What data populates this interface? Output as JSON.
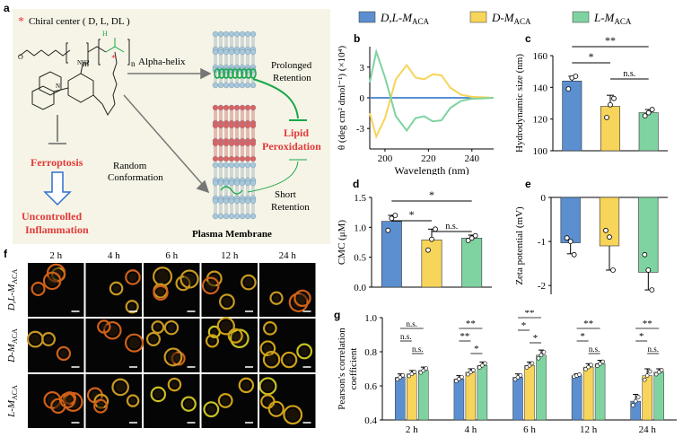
{
  "colors": {
    "dl": "#5b8fd0",
    "d": "#f7d45a",
    "l": "#7fd3a0",
    "red_label": "#e23a3a",
    "schematic_bg": "#f6f4e6"
  },
  "legend": [
    {
      "key": "dl",
      "label": "D,L-M",
      "sub": "ACA"
    },
    {
      "key": "d",
      "label": "D-M",
      "sub": "ACA"
    },
    {
      "key": "l",
      "label": "L-M",
      "sub": "ACA"
    }
  ],
  "panel_a": {
    "letter": "a",
    "chiral_star": "*",
    "chiral_label": "Chiral center ( D, L, DL )",
    "alpha_helix": "Alpha-helix",
    "random": "Random",
    "conformation": "Conformation",
    "prolonged": "Prolonged",
    "retention": "Retention",
    "short": "Short",
    "short_retention": "Retention",
    "lipid": "Lipid",
    "peroxidation": "Peroxidation",
    "ferroptosis": "Ferroptosis",
    "uncontrolled": "Uncontrolled",
    "inflammation": "Inflammation",
    "membrane": "Plasma Membrane",
    "formula_m": "m",
    "formula_n": "n",
    "formula_nh2": "NH2",
    "formula_h": "H",
    "formula_n_atom": "N",
    "formula_o": "O"
  },
  "panel_f": {
    "letter": "f",
    "times": [
      "2 h",
      "4 h",
      "6 h",
      "12 h",
      "24 h"
    ],
    "rows": [
      {
        "label": "D,L-M",
        "sub": "ACA"
      },
      {
        "label": "D-M",
        "sub": "ACA"
      },
      {
        "label": "L-M",
        "sub": "ACA"
      }
    ]
  },
  "chart_data": [
    {
      "panel": "b",
      "type": "line",
      "xlabel": "Wavelength (nm)",
      "ylabel": "θ (deg cm² dmol⁻¹) (×10⁴)",
      "xlim": [
        193,
        250
      ],
      "ylim": [
        -5,
        5
      ],
      "xticks": [
        200,
        220,
        240
      ],
      "yticks": [
        -3,
        0,
        3
      ],
      "series": [
        {
          "key": "dl",
          "x": [
            193,
            200,
            210,
            220,
            230,
            240,
            250
          ],
          "y": [
            0,
            0,
            0,
            0,
            0,
            0,
            0
          ]
        },
        {
          "key": "d",
          "x": [
            193,
            196,
            200,
            205,
            210,
            214,
            218,
            222,
            226,
            230,
            235,
            240,
            245,
            250
          ],
          "y": [
            -1.5,
            -3.8,
            -2.0,
            1.8,
            3.2,
            2.0,
            1.8,
            2.3,
            2.2,
            1.0,
            0.3,
            0.1,
            0.05,
            0
          ]
        },
        {
          "key": "l",
          "x": [
            193,
            196,
            200,
            205,
            210,
            214,
            218,
            222,
            226,
            230,
            235,
            240,
            245,
            250
          ],
          "y": [
            1.5,
            4.5,
            2.0,
            -1.8,
            -3.2,
            -2.0,
            -1.8,
            -2.3,
            -2.2,
            -1.0,
            -0.3,
            -0.1,
            -0.05,
            0
          ]
        }
      ]
    },
    {
      "panel": "c",
      "type": "bar",
      "ylabel": "Hydrodynamic size (nm)",
      "ylim": [
        100,
        160
      ],
      "yticks": [
        100,
        120,
        140,
        160
      ],
      "categories": [
        "dl",
        "d",
        "l"
      ],
      "values": [
        144,
        128,
        124
      ],
      "errors": [
        3,
        7,
        2
      ],
      "points": [
        [
          139,
          146,
          147
        ],
        [
          121,
          129,
          133
        ],
        [
          122,
          124,
          126
        ]
      ],
      "significance": [
        {
          "a": 0,
          "b": 2,
          "label": "**"
        },
        {
          "a": 0,
          "b": 1,
          "label": "*"
        },
        {
          "a": 1,
          "b": 2,
          "label": "n.s."
        }
      ]
    },
    {
      "panel": "d",
      "type": "bar",
      "ylabel": "CMC (μM)",
      "ylim": [
        0,
        1.5
      ],
      "yticks": [
        0.0,
        0.5,
        1.0,
        1.5
      ],
      "categories": [
        "dl",
        "d",
        "l"
      ],
      "values": [
        1.1,
        0.79,
        0.82
      ],
      "errors": [
        0.1,
        0.18,
        0.05
      ],
      "points": [
        [
          0.95,
          1.15,
          1.2
        ],
        [
          0.62,
          0.8,
          0.97
        ],
        [
          0.78,
          0.82,
          0.86
        ]
      ],
      "significance": [
        {
          "a": 0,
          "b": 2,
          "label": "*"
        },
        {
          "a": 0,
          "b": 1,
          "label": "*"
        },
        {
          "a": 1,
          "b": 2,
          "label": "n.s."
        }
      ]
    },
    {
      "panel": "e",
      "type": "bar",
      "ylabel": "Zeta potential (mV)",
      "ylim": [
        -2.2,
        0
      ],
      "yticks": [
        0,
        -1,
        -2
      ],
      "categories": [
        "dl",
        "d",
        "l"
      ],
      "values": [
        -1.03,
        -1.1,
        -1.7
      ],
      "errors": [
        0.25,
        0.55,
        0.4
      ],
      "points": [
        [
          -0.92,
          -1.0,
          -1.3
        ],
        [
          -0.75,
          -0.9,
          -1.65
        ],
        [
          -1.3,
          -1.65,
          -2.1
        ]
      ]
    },
    {
      "panel": "g",
      "type": "bar",
      "ylabel": "Pearson's correlation coefficient",
      "ylim": [
        0.4,
        1.0
      ],
      "yticks": [
        0.4,
        0.6,
        0.8,
        1.0
      ],
      "categories": [
        "2 h",
        "4 h",
        "6 h",
        "12 h",
        "24 h"
      ],
      "series": [
        {
          "key": "dl",
          "values": [
            0.65,
            0.64,
            0.65,
            0.66,
            0.51
          ],
          "errors": [
            0.02,
            0.02,
            0.02,
            0.01,
            0.04
          ]
        },
        {
          "key": "d",
          "values": [
            0.67,
            0.68,
            0.72,
            0.71,
            0.66
          ],
          "errors": [
            0.02,
            0.02,
            0.02,
            0.02,
            0.04
          ]
        },
        {
          "key": "l",
          "values": [
            0.69,
            0.72,
            0.78,
            0.73,
            0.68
          ],
          "errors": [
            0.02,
            0.02,
            0.03,
            0.02,
            0.02
          ]
        }
      ],
      "significance": [
        [
          "n.s.",
          "n.s.",
          "n.s."
        ],
        [
          "**",
          "**",
          "*"
        ],
        [
          "**",
          "*",
          "*"
        ],
        [
          "**",
          "*",
          "n.s."
        ],
        [
          "**",
          "*",
          "n.s."
        ]
      ]
    }
  ]
}
